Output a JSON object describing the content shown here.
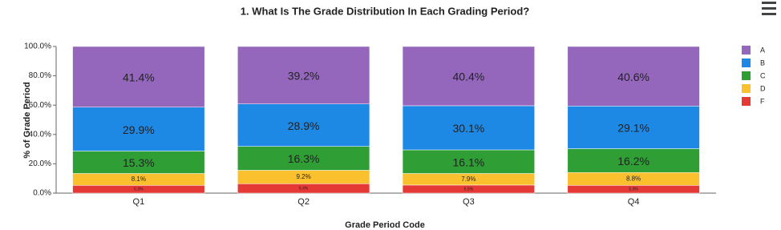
{
  "chart_data": {
    "type": "stacked_bar",
    "title": "1. What Is The Grade Distribution In Each Grading Period?",
    "x_label": "Grade Period Code",
    "y_label": "% of Grade Period",
    "categories": [
      "Q1",
      "Q2",
      "Q3",
      "Q4"
    ],
    "series": [
      {
        "name": "F",
        "color": "#e53935",
        "values": [
          5.3,
          6.4,
          5.5,
          5.3
        ],
        "value_labels": [
          "5.3%",
          "6.4%",
          "5.5%",
          "5.3%"
        ]
      },
      {
        "name": "D",
        "color": "#fbc02d",
        "values": [
          8.1,
          9.2,
          7.9,
          8.8
        ],
        "value_labels": [
          "8.1%",
          "9.2%",
          "7.9%",
          "8.8%"
        ]
      },
      {
        "name": "C",
        "color": "#2e9e35",
        "values": [
          15.3,
          16.3,
          16.1,
          16.2
        ],
        "value_labels": [
          "15.3%",
          "16.3%",
          "16.1%",
          "16.2%"
        ]
      },
      {
        "name": "B",
        "color": "#1e88e5",
        "values": [
          29.9,
          28.9,
          30.1,
          29.1
        ],
        "value_labels": [
          "29.9%",
          "28.9%",
          "30.1%",
          "29.1%"
        ]
      },
      {
        "name": "A",
        "color": "#9467bd",
        "values": [
          41.4,
          39.2,
          40.4,
          40.6
        ],
        "value_labels": [
          "41.4%",
          "39.2%",
          "40.4%",
          "40.6%"
        ]
      }
    ],
    "ylim": [
      0,
      100
    ],
    "yticks": [
      {
        "value": 0,
        "label": "0.0%"
      },
      {
        "value": 20,
        "label": "20.0%"
      },
      {
        "value": 40,
        "label": "40.0%"
      },
      {
        "value": 60,
        "label": "60.0%"
      },
      {
        "value": 80,
        "label": "80.0%"
      },
      {
        "value": 100,
        "label": "100.0%"
      }
    ],
    "legend": "right"
  }
}
